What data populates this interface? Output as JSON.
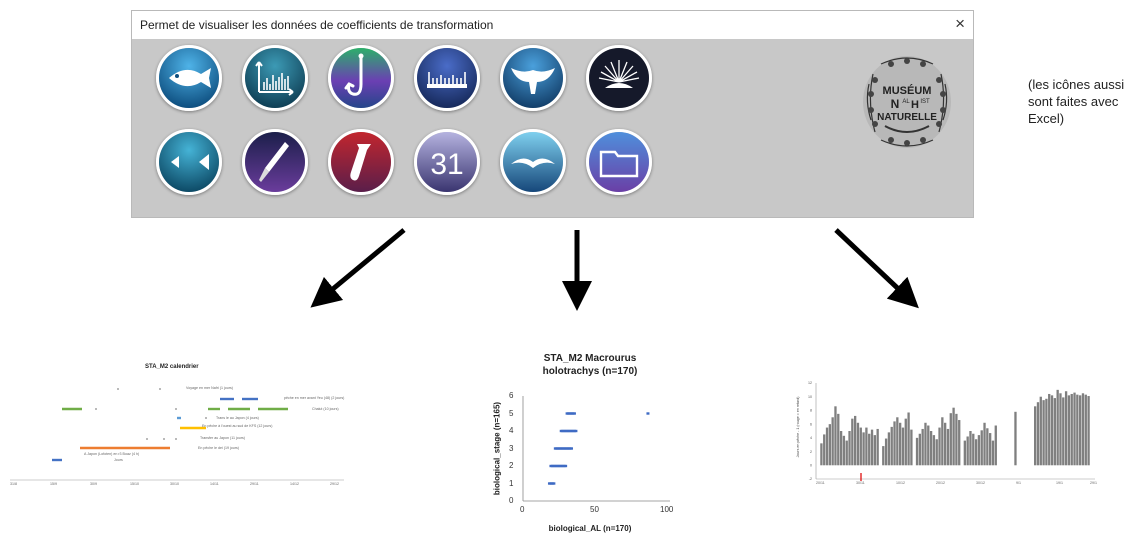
{
  "window": {
    "title": "Permet de visualiser les données de coefficients de transformation",
    "close_symbol": "×"
  },
  "toolbar": {
    "row1": [
      {
        "icon": "fish-icon",
        "bg": "#1a6fa3"
      },
      {
        "icon": "bar-chart-icon",
        "bg": "#1a5f78"
      },
      {
        "icon": "fishing-hook-icon",
        "bg": "#2a7a46"
      },
      {
        "icon": "ruler-icon",
        "bg": "#243f7a"
      },
      {
        "icon": "whale-tail-icon",
        "bg": "#1c5a88"
      },
      {
        "icon": "sea-urchin-icon",
        "bg": "#161a2a"
      }
    ],
    "row2": [
      {
        "icon": "fish-silhouette-icon",
        "bg": "#176a86"
      },
      {
        "icon": "scalpel-icon",
        "bg": "#2b2b58"
      },
      {
        "icon": "test-tube-icon",
        "bg": "#8a1e2a"
      },
      {
        "icon": "calendar-icon",
        "bg": "#3a3a6a",
        "label": "31"
      },
      {
        "icon": "bird-icon",
        "bg": "#1d5c8a"
      },
      {
        "icon": "folder-icon",
        "bg": "#3c4a8c"
      }
    ]
  },
  "logo": {
    "line1": "MUSÉUM",
    "line2": "N",
    "line2_sup_a": "AL",
    "line2_sup_b": "H",
    "line2_sup_c": "IST",
    "line3": "NATURELLE"
  },
  "side_note": "(les icônes aussi sont faites avec Excel)",
  "panels": {
    "calendar": {
      "title": "STA_M2  calendrier",
      "annotations": [
        "Voyage en mer Nafri (1 jours)",
        "pêche en mer avant Yeu (48) (2 jours)",
        "Chalut (10 jours)",
        "Trans le au Japon (4 jours)",
        "En pêche à l'ouest au sud de KFS (12 jours)",
        "Transfer au Japon (11 jours)",
        "En pêche le dei (19 jours)",
        "A Japon (Lofoten) en r3 Boaz (4 h)",
        "Jours"
      ],
      "x_ticks": [
        "31/8",
        "15/9",
        "30/9",
        "15/10",
        "30/10",
        "14/11",
        "29/11",
        "14/12",
        "29/12"
      ]
    },
    "scatter": {
      "title_line1": "STA_M2   Macrourus",
      "title_line2": "holotrachys (n=170)",
      "ylabel": "biological_stage (n=165)",
      "xlabel": "biological_AL (n=170)",
      "yticks": [
        "0",
        "1",
        "2",
        "3",
        "4",
        "5",
        "6"
      ],
      "xticks": [
        "0",
        "50",
        "100"
      ]
    },
    "bars": {
      "ylabel": "Jours en pêche - 1 (rouge = en retard)",
      "x_ticks": [
        "20/11",
        "30/11",
        "10/12",
        "20/12",
        "30/12",
        "9/1",
        "19/1",
        "29/1"
      ]
    }
  },
  "chart_data": [
    {
      "type": "scatter",
      "title": "STA_M2   Macrourus holotrachys (n=170)",
      "xlabel": "biological_AL (n=170)",
      "ylabel": "biological_stage (n=165)",
      "xlim": [
        0,
        100
      ],
      "ylim": [
        0,
        6
      ],
      "series": [
        {
          "color": "#3f6bc4",
          "points": [
            [
              18,
              1
            ],
            [
              19,
              1
            ],
            [
              20,
              1
            ],
            [
              21,
              1
            ],
            [
              19,
              2
            ],
            [
              20,
              2
            ],
            [
              21,
              2
            ],
            [
              22,
              2
            ],
            [
              23,
              2
            ],
            [
              24,
              2
            ],
            [
              25,
              2
            ],
            [
              26,
              2
            ],
            [
              27,
              2
            ],
            [
              28,
              2
            ],
            [
              29,
              2
            ],
            [
              22,
              3
            ],
            [
              23,
              3
            ],
            [
              24,
              3
            ],
            [
              25,
              3
            ],
            [
              26,
              3
            ],
            [
              27,
              3
            ],
            [
              28,
              3
            ],
            [
              29,
              3
            ],
            [
              30,
              3
            ],
            [
              31,
              3
            ],
            [
              32,
              3
            ],
            [
              33,
              3
            ],
            [
              26,
              4
            ],
            [
              27,
              4
            ],
            [
              28,
              4
            ],
            [
              29,
              4
            ],
            [
              30,
              4
            ],
            [
              31,
              4
            ],
            [
              32,
              4
            ],
            [
              33,
              4
            ],
            [
              34,
              4
            ],
            [
              35,
              4
            ],
            [
              36,
              4
            ],
            [
              30,
              5
            ],
            [
              31,
              5
            ],
            [
              32,
              5
            ],
            [
              33,
              5
            ],
            [
              34,
              5
            ],
            [
              35,
              5
            ],
            [
              85,
              5
            ]
          ]
        }
      ]
    },
    {
      "type": "bar",
      "ylabel": "Jours en pêche - 1 (rouge = en retard)",
      "ylim": [
        -2,
        12
      ],
      "y_ticks": [
        -2,
        0,
        2,
        4,
        6,
        8,
        10,
        12
      ],
      "categories_ticks": [
        "20/11",
        "30/11",
        "10/12",
        "20/12",
        "30/12",
        "9/1",
        "19/1",
        "29/1"
      ],
      "values": [
        3.2,
        4.5,
        5.5,
        6,
        7,
        8.6,
        7.5,
        5,
        4.3,
        3.6,
        5,
        6.8,
        7.2,
        6.2,
        5.5,
        4.8,
        5.5,
        4.6,
        5.2,
        4.4,
        5.3,
        0,
        2.8,
        3.9,
        4.8,
        5.6,
        6.4,
        7,
        6.2,
        5.5,
        6.8,
        7.7,
        5.2,
        0,
        4,
        4.6,
        5.3,
        6.2,
        5.8,
        5,
        4.4,
        3.8,
        5.5,
        7,
        6.2,
        5.3,
        7.6,
        8.4,
        7.5,
        6.6,
        0,
        3.6,
        4.2,
        5,
        4.6,
        3.8,
        4.4,
        5.1,
        6.2,
        5.4,
        4.7,
        3.6,
        5.8,
        0,
        0,
        0,
        0,
        0,
        0,
        7.8,
        0,
        0,
        0,
        0,
        0,
        0,
        8.6,
        9.2,
        10,
        9.5,
        9.7,
        10.4,
        10.2,
        9.8,
        11,
        10.5,
        9.9,
        10.8,
        10.2,
        10.4,
        10.6,
        10.3,
        10.2,
        10.5,
        10.3,
        10.1
      ]
    }
  ]
}
